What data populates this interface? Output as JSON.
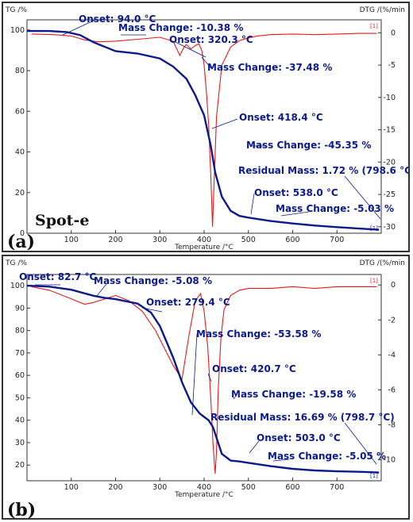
{
  "chart_data": [
    {
      "type": "line",
      "panel_label": "(a)",
      "sample_label": "Spot-e",
      "ylabel_left": "TG /%",
      "ylabel_right": "DTG /(%/min",
      "xlabel": "Temperature /°C",
      "xlim": [
        0,
        800
      ],
      "ylim_left": [
        0,
        105
      ],
      "ylim_right": [
        -31,
        2
      ],
      "xticks": [
        100,
        200,
        300,
        400,
        500,
        600,
        700
      ],
      "yticks_left": [
        0,
        20,
        40,
        60,
        80,
        100
      ],
      "yticks_right": [
        0,
        -5,
        -10,
        -15,
        -20,
        -25,
        -30
      ],
      "right_marker": "[1]",
      "tg": {
        "x": [
          0,
          50,
          90,
          120,
          150,
          200,
          250,
          300,
          330,
          360,
          380,
          400,
          415,
          425,
          440,
          460,
          480,
          500,
          550,
          600,
          650,
          700,
          750,
          795
        ],
        "y": [
          99.5,
          99.5,
          99,
          97.5,
          94,
          89.6,
          88.4,
          86,
          82,
          76,
          68,
          58,
          43,
          30,
          18,
          11,
          8.5,
          7.7,
          6,
          4.8,
          3.8,
          3.0,
          2.3,
          1.72
        ]
      },
      "dtg": {
        "x": [
          10,
          60,
          100,
          130,
          160,
          200,
          250,
          300,
          330,
          345,
          355,
          360,
          370,
          380,
          388,
          395,
          400,
          405,
          410,
          415,
          419,
          422,
          428,
          440,
          460,
          480,
          500,
          520,
          550,
          600,
          650,
          700,
          750,
          790
        ],
        "y": [
          -0.2,
          -0.3,
          -0.5,
          -1.1,
          -1.4,
          -1.3,
          -1.0,
          -0.7,
          -1.3,
          -3.5,
          -2.2,
          -1.8,
          -2.5,
          -2.0,
          -1.7,
          -2.8,
          -5.0,
          -9.0,
          -14.0,
          -22.0,
          -30.0,
          -24.0,
          -13.0,
          -5.0,
          -2.2,
          -1.2,
          -0.8,
          -0.5,
          -0.3,
          -0.2,
          -0.3,
          -0.2,
          -0.1,
          -0.1
        ]
      },
      "annotations": [
        {
          "text": "Onset: 94.0 °C"
        },
        {
          "text": "Mass Change: -10.38 %"
        },
        {
          "text": "Onset: 320.3 °C"
        },
        {
          "text": "Mass Change: -37.48 %"
        },
        {
          "text": "Onset: 418.4 °C"
        },
        {
          "text": "Mass Change: -45.35 %"
        },
        {
          "text": "Residual Mass: 1.72 % (798.6 °C)"
        },
        {
          "text": "Onset: 538.0 °C"
        },
        {
          "text": "Mass Change: -5.03 %"
        }
      ]
    },
    {
      "type": "line",
      "panel_label": "(b)",
      "sample_label": "",
      "ylabel_left": "TG /%",
      "ylabel_right": "DTG /(%/min",
      "xlabel": "Temperature /°C",
      "xlim": [
        0,
        800
      ],
      "ylim_left": [
        13,
        105
      ],
      "ylim_right": [
        -11.2,
        0.6
      ],
      "xticks": [
        100,
        200,
        300,
        400,
        500,
        600,
        700
      ],
      "yticks_left": [
        20,
        30,
        40,
        50,
        60,
        70,
        80,
        90,
        100
      ],
      "yticks_right": [
        0,
        -2,
        -4,
        -6,
        -8,
        -10
      ],
      "right_marker": "[1]",
      "tg": {
        "x": [
          0,
          50,
          100,
          150,
          175,
          200,
          250,
          280,
          300,
          330,
          350,
          370,
          390,
          400,
          410,
          420,
          430,
          440,
          460,
          480,
          500,
          550,
          600,
          650,
          700,
          750,
          795
        ],
        "y": [
          100,
          99.6,
          98.2,
          95.5,
          94.6,
          94.0,
          92.0,
          88.0,
          82.0,
          68.0,
          57.0,
          48.0,
          43.0,
          41.5,
          40.0,
          37.0,
          31.0,
          25.0,
          22.0,
          21.6,
          21.0,
          19.5,
          18.3,
          17.6,
          17.2,
          17.0,
          16.69
        ]
      },
      "dtg": {
        "x": [
          10,
          50,
          100,
          130,
          150,
          175,
          200,
          230,
          260,
          290,
          310,
          330,
          350,
          365,
          380,
          392,
          400,
          408,
          415,
          420,
          425,
          428,
          432,
          438,
          445,
          460,
          480,
          500,
          550,
          600,
          650,
          700,
          750,
          790
        ],
        "y": [
          -0.1,
          -0.3,
          -0.8,
          -1.1,
          -1.0,
          -0.8,
          -0.6,
          -0.9,
          -1.5,
          -2.6,
          -3.6,
          -4.6,
          -5.4,
          -3.0,
          -0.9,
          -0.5,
          -1.5,
          -3.5,
          -6.5,
          -9.0,
          -10.8,
          -9.5,
          -6.0,
          -3.0,
          -1.4,
          -0.6,
          -0.3,
          -0.2,
          -0.2,
          -0.1,
          -0.2,
          -0.1,
          -0.1,
          -0.1
        ]
      },
      "annotations": [
        {
          "text": "Onset: 82.7 °C"
        },
        {
          "text": "Mass Change: -5.08 %"
        },
        {
          "text": "Onset: 279.4 °C"
        },
        {
          "text": "Mass Change: -53.58 %"
        },
        {
          "text": "Onset: 420.7 °C"
        },
        {
          "text": "Mass Change: -19.58 %"
        },
        {
          "text": "Residual Mass: 16.69 % (798.7 °C)"
        },
        {
          "text": "Onset: 503.0 °C"
        },
        {
          "text": "Mass Change: -5.05 %"
        }
      ]
    }
  ],
  "colors": {
    "tg_line": "#0a1a8a",
    "dtg_line": "#e8191a",
    "annotation_text": "#0a1a8a",
    "frame": "#333333"
  }
}
